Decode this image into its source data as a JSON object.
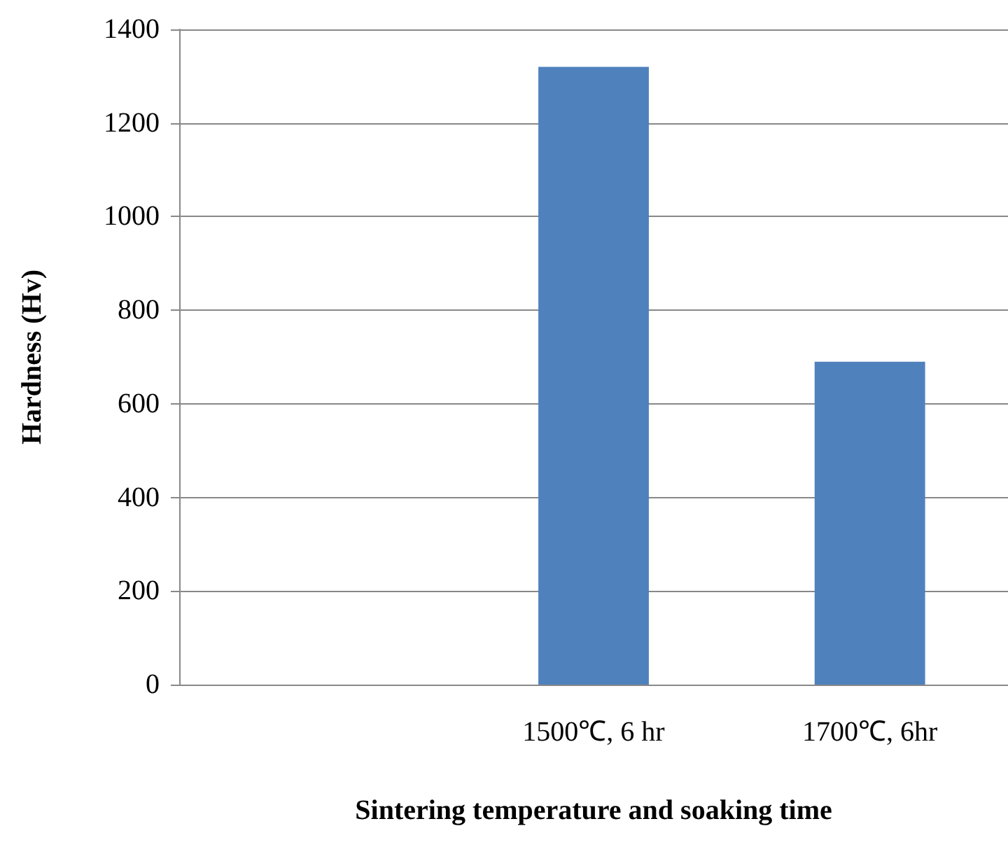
{
  "chart_data": {
    "type": "bar",
    "xlabel": "Sintering temperature and soaking time",
    "ylabel": "Hardness (Hv)",
    "categories": [
      null,
      "1500℃, 6 hr",
      "1700℃, 6hr"
    ],
    "values": [
      null,
      1320,
      690
    ],
    "color": "#4f81bd",
    "ylim": [
      0,
      1400
    ],
    "yticks": [
      0,
      200,
      400,
      600,
      800,
      1000,
      1200,
      1400
    ],
    "grid": "y"
  }
}
